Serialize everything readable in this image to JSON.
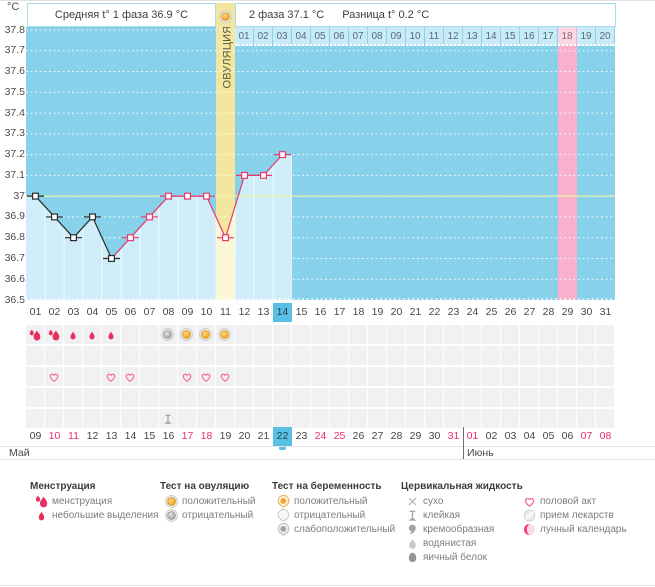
{
  "header": {
    "unit": "°C",
    "avg_phase1": "Средняя t° 1 фаза 36.9 °C",
    "phase2": "2 фаза 37.1 °C",
    "difference": "Разница t° 0.2 °C",
    "ovulation_label": "ОВУЛЯЦИЯ"
  },
  "axis": {
    "y_tick_labels": [
      "37.8",
      "37.7",
      "37.6",
      "37.5",
      "37.4",
      "37.3",
      "37.2",
      "37.1",
      "37",
      "36.9",
      "36.8",
      "36.7",
      "36.6",
      "36.5"
    ]
  },
  "chart_data": {
    "type": "line",
    "title": "Basal body temperature cycle chart",
    "ylabel": "°C",
    "ylim": [
      36.5,
      37.8
    ],
    "grid": "horizontal dotted white, 0.1 °C steps",
    "days_total": 31,
    "x": [
      1,
      2,
      3,
      4,
      5,
      6,
      7,
      8,
      9,
      10,
      11,
      12,
      13,
      14
    ],
    "temps": [
      37.0,
      36.9,
      36.8,
      36.9,
      36.7,
      36.8,
      36.9,
      37.0,
      37.0,
      37.0,
      36.8,
      37.1,
      37.1,
      37.2
    ],
    "menstruation_days": [
      1,
      2,
      3,
      4,
      5
    ],
    "coverline": 37.0,
    "ovulation_day": 11,
    "lunar_calendar_day": 29,
    "avg_phase1_temp": 36.9,
    "avg_phase2_temp": 37.1,
    "difference": 0.2,
    "dpo_labels": [
      "01",
      "02",
      "03",
      "04",
      "05",
      "06",
      "07",
      "08",
      "09",
      "10",
      "11",
      "12",
      "13",
      "14",
      "15",
      "16",
      "17",
      "18",
      "19",
      "20"
    ],
    "dpo_first_day": 12,
    "dpo_highlight": "18"
  },
  "day_axis": {
    "labels": [
      "01",
      "02",
      "03",
      "04",
      "05",
      "06",
      "07",
      "08",
      "09",
      "10",
      "11",
      "12",
      "13",
      "14",
      "15",
      "16",
      "17",
      "18",
      "19",
      "20",
      "21",
      "22",
      "23",
      "24",
      "25",
      "26",
      "27",
      "28",
      "29",
      "30",
      "31"
    ],
    "highlight": "14"
  },
  "rows": [
    {
      "name": "bleeding-and-ovulation-tests",
      "cells": {
        "1": "menses-heavy",
        "2": "menses-heavy",
        "3": "menses-light",
        "4": "menses-light",
        "5": "menses-light",
        "8": "ovtest-negative",
        "9": "ovtest-positive",
        "10": "ovtest-positive",
        "11": "ovtest-positive"
      }
    },
    {
      "name": "pregnancy-tests",
      "cells": {}
    },
    {
      "name": "intercourse",
      "cells": {
        "2": "heart",
        "5": "heart",
        "6": "heart",
        "9": "heart",
        "10": "heart",
        "11": "heart"
      }
    },
    {
      "name": "medication",
      "cells": {}
    },
    {
      "name": "cervical-fluid",
      "cells": {
        "8": "sticky"
      }
    }
  ],
  "dates": {
    "labels": [
      "09",
      "10",
      "11",
      "12",
      "13",
      "14",
      "15",
      "16",
      "17",
      "18",
      "19",
      "20",
      "21",
      "22",
      "23",
      "24",
      "25",
      "26",
      "27",
      "28",
      "29",
      "30",
      "31",
      "01",
      "02",
      "03",
      "04",
      "05",
      "06",
      "07",
      "08"
    ],
    "red": [
      "10",
      "11",
      "17",
      "18",
      "24",
      "25",
      "31",
      "01",
      "07",
      "08"
    ],
    "red_june_only": [
      "01",
      "07",
      "08"
    ],
    "highlight": "22",
    "months": [
      {
        "label": "Май"
      },
      {
        "label": "Июнь",
        "starts_at_column": 24
      }
    ]
  },
  "legend": {
    "groups": [
      {
        "header": "Менструация",
        "items": [
          {
            "icon": "menses-heavy",
            "label": "менструация"
          },
          {
            "icon": "menses-light",
            "label": "небольшие выделения"
          }
        ]
      },
      {
        "header": "Тест на овуляцию",
        "items": [
          {
            "icon": "ovtest-positive",
            "label": "положительный"
          },
          {
            "icon": "ovtest-negative",
            "label": "отрицательный"
          }
        ]
      },
      {
        "header": "Тест на беременность",
        "items": [
          {
            "icon": "pregtest-positive",
            "label": "положительный"
          },
          {
            "icon": "pregtest-negative",
            "label": "отрицательный"
          },
          {
            "icon": "pregtest-weak",
            "label": "слабоположительный"
          }
        ]
      },
      {
        "header": "Цервикальная жидкость",
        "items": [
          {
            "icon": "dry",
            "label": "сухо"
          },
          {
            "icon": "sticky",
            "label": "клейкая"
          },
          {
            "icon": "creamy",
            "label": "кремообразная"
          },
          {
            "icon": "watery",
            "label": "водянистая"
          },
          {
            "icon": "eggwhite",
            "label": "яичный белок"
          }
        ]
      },
      {
        "header": "",
        "items": [
          {
            "icon": "heart",
            "label": "половой акт"
          },
          {
            "icon": "pills",
            "label": "прием лекарств"
          },
          {
            "icon": "moon",
            "label": "лунный календарь"
          }
        ]
      }
    ]
  },
  "colors": {
    "chart_bg": "#87d1eb",
    "fill_under_curve": "#cfedf8",
    "ovulation_band": "#f3e79f",
    "ovulation_band_light": "#fbf6d3",
    "lunar_band": "#f8aeca",
    "dpo_cell": "#c9eaf7",
    "dpo_cell_lunar": "#fad7e3",
    "coverline": "#eff3a6",
    "temp_line": "#e8396e",
    "temp_line_menses": "#2a2a2a",
    "highlight_day": "#58c0e4",
    "red_date": "#ee2e63",
    "grid_cell": "#f1f1f4"
  }
}
